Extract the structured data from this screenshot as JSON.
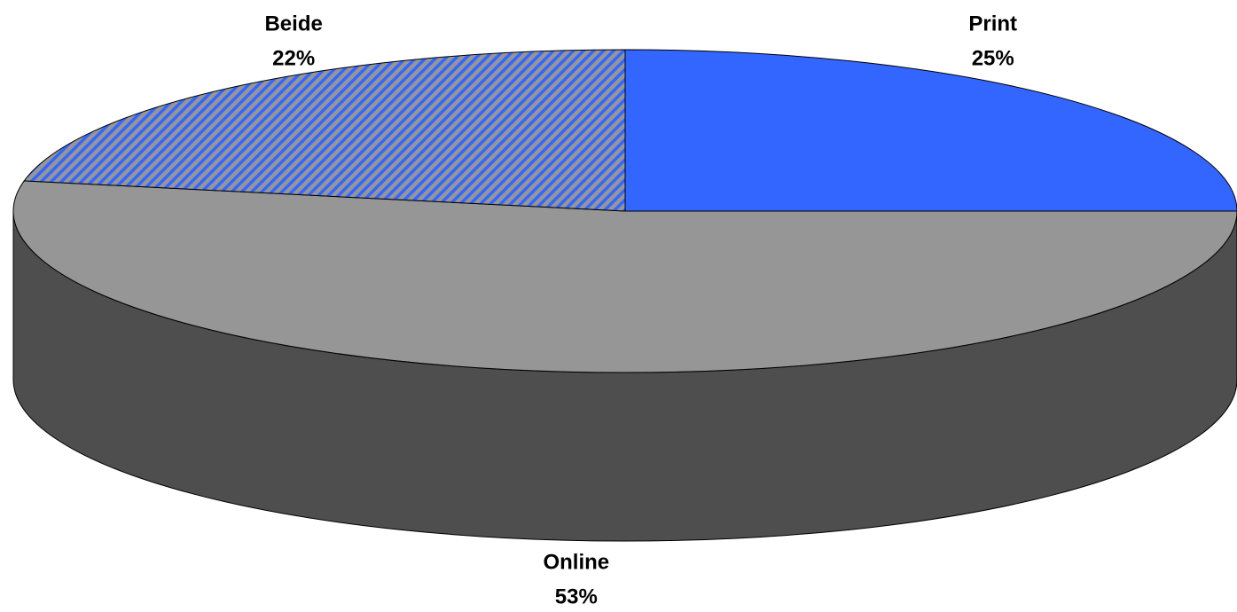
{
  "chart_data": {
    "type": "pie3d",
    "categories": [
      "Print",
      "Online",
      "Beide"
    ],
    "values": [
      25,
      53,
      22
    ],
    "value_labels": [
      "25%",
      "53%",
      "22%"
    ],
    "colors": [
      "#3366ff",
      "#969696",
      "#969696"
    ],
    "hatched": [
      false,
      false,
      true
    ],
    "hatch_color": "#3366ff"
  }
}
